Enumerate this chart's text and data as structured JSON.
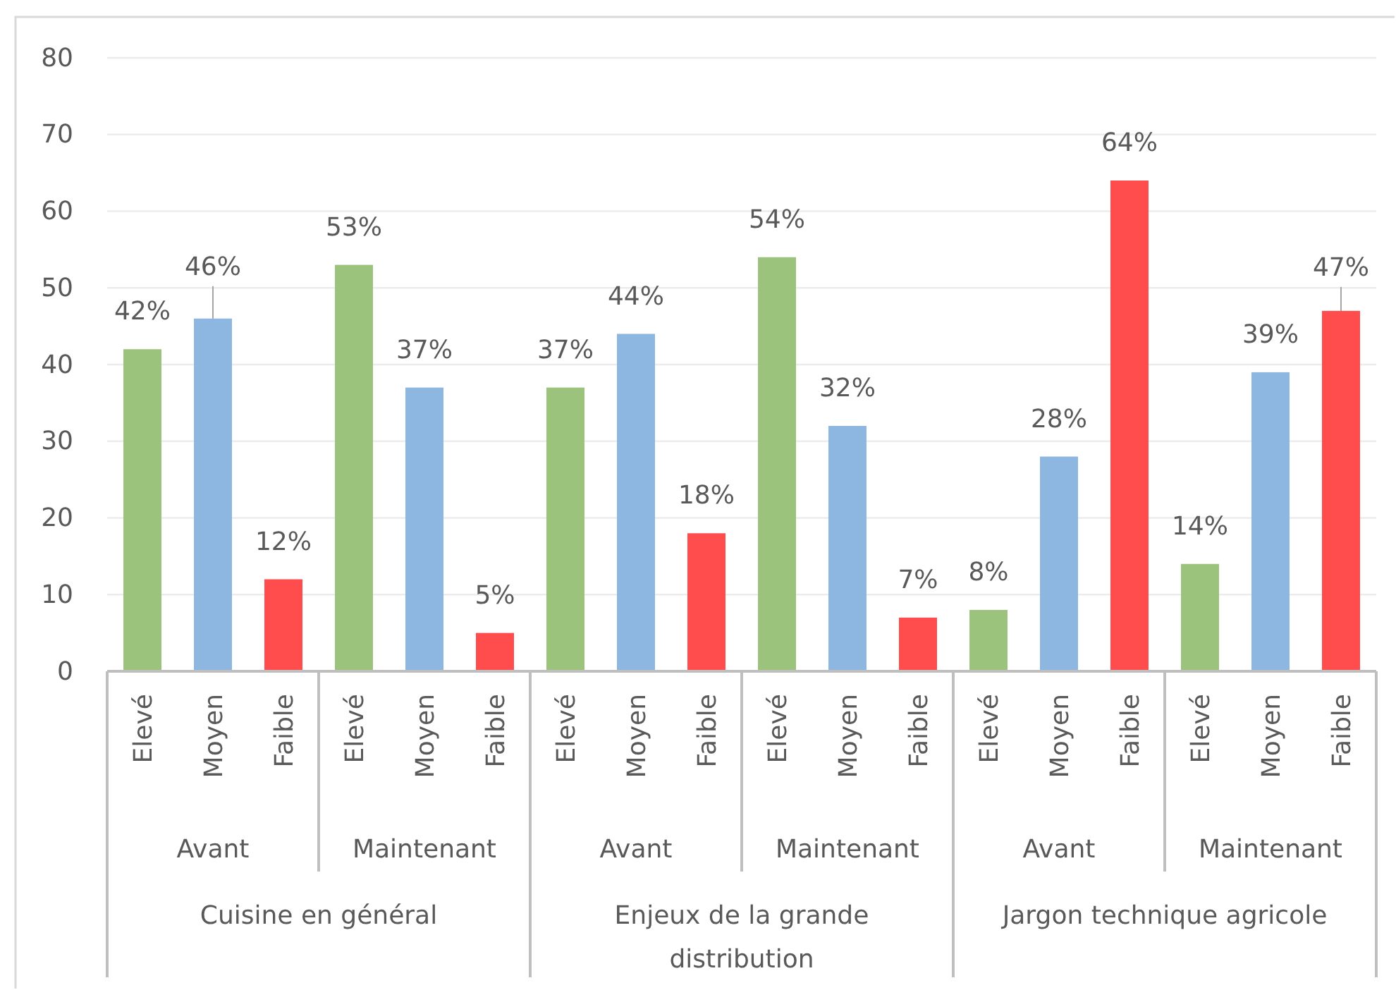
{
  "chart_data": {
    "type": "bar",
    "categories": [
      "Elevé",
      "Moyen",
      "Faible",
      "Elevé",
      "Moyen",
      "Faible",
      "Elevé",
      "Moyen",
      "Faible",
      "Elevé",
      "Moyen",
      "Faible",
      "Elevé",
      "Moyen",
      "Faible",
      "Elevé",
      "Moyen",
      "Faible"
    ],
    "values": [
      42,
      46,
      12,
      53,
      37,
      5,
      37,
      44,
      18,
      54,
      32,
      7,
      8,
      28,
      64,
      14,
      39,
      47
    ],
    "colors": [
      "#9bc37c",
      "#8db6e0",
      "#ff4c4c",
      "#9bc37c",
      "#8db6e0",
      "#ff4c4c",
      "#9bc37c",
      "#8db6e0",
      "#ff4c4c",
      "#9bc37c",
      "#8db6e0",
      "#ff4c4c",
      "#9bc37c",
      "#8db6e0",
      "#ff4c4c",
      "#9bc37c",
      "#8db6e0",
      "#ff4c4c"
    ],
    "value_labels": [
      "42%",
      "46%",
      "12%",
      "53%",
      "37%",
      "5%",
      "37%",
      "44%",
      "18%",
      "54%",
      "32%",
      "7%",
      "8%",
      "28%",
      "64%",
      "14%",
      "39%",
      "47%"
    ],
    "ylim": [
      0,
      80
    ],
    "yticks": [
      0,
      10,
      20,
      30,
      40,
      50,
      60,
      70,
      80
    ],
    "grid": "y",
    "annotations": [
      "Avant",
      "Maintenant",
      "Avant",
      "Maintenant",
      "Avant",
      "Maintenant",
      "Cuisine en général",
      "Enjeux de la grande distribution",
      "Jargon technique agricole"
    ]
  }
}
